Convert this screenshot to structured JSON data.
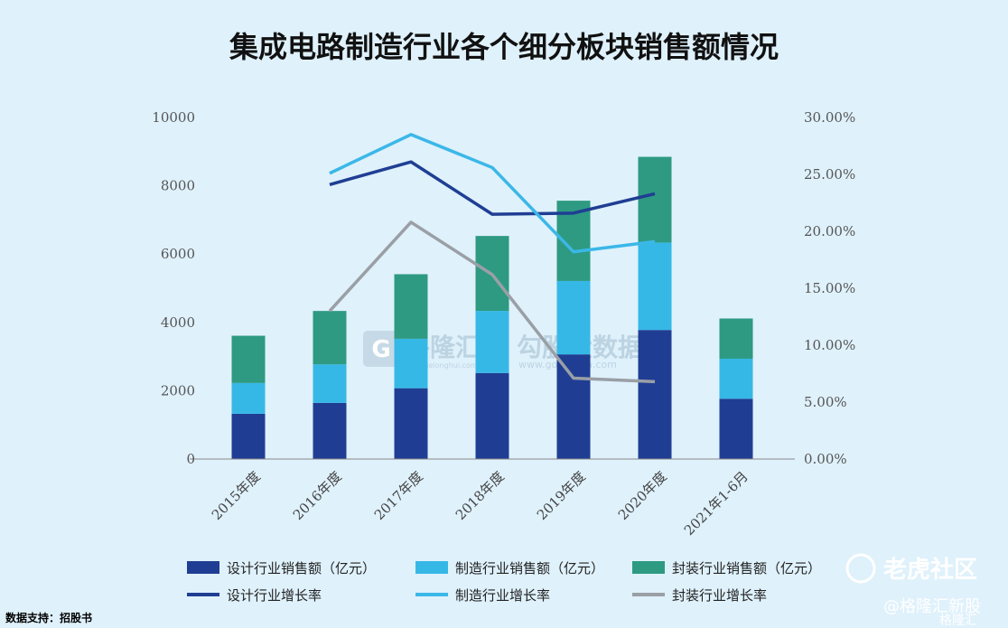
{
  "chart_data": {
    "type": "bar",
    "title": "集成电路制造行业各个细分板块销售额情况",
    "categories": [
      "2015年度",
      "2016年度",
      "2017年度",
      "2018年度",
      "2019年度",
      "2020年度",
      "2021年1-6月"
    ],
    "bar_series": [
      {
        "name": "设计行业销售额（亿元）",
        "color": "#1f3e93",
        "values": [
          1325,
          1644,
          2073,
          2519,
          3064,
          3778,
          1766
        ]
      },
      {
        "name": "制造行业销售额（亿元）",
        "color": "#36b8e6",
        "values": [
          901,
          1127,
          1448,
          1818,
          2149,
          2560,
          1171
        ]
      },
      {
        "name": "封装行业销售额（亿元）",
        "color": "#2e9a82",
        "values": [
          1384,
          1564,
          1890,
          2194,
          2350,
          2510,
          1177
        ]
      }
    ],
    "line_series": [
      {
        "name": "设计行业增长率",
        "color": "#1f3e93",
        "values": [
          null,
          24.1,
          26.1,
          21.5,
          21.6,
          23.3,
          null
        ]
      },
      {
        "name": "制造行业增长率",
        "color": "#3bb7e8",
        "values": [
          null,
          25.1,
          28.5,
          25.6,
          18.2,
          19.1,
          null
        ]
      },
      {
        "name": "封装行业增长率",
        "color": "#9a9fa6",
        "values": [
          null,
          13.0,
          20.8,
          16.2,
          7.1,
          6.8,
          null
        ]
      }
    ],
    "y_left": {
      "min": 0,
      "max": 10000,
      "ticks": [
        0,
        2000,
        4000,
        6000,
        8000,
        10000
      ]
    },
    "y_right": {
      "min": 0,
      "max": 30,
      "ticks": [
        "0.00%",
        "5.00%",
        "10.00%",
        "15.00%",
        "20.00%",
        "25.00%",
        "30.00%"
      ]
    },
    "legend_position": "bottom"
  },
  "source_note": "数据支持：招股书",
  "watermarks": {
    "center_brand": "格隆汇",
    "center_site": "www.gelonghui.com",
    "center_slogan": "勾股大数据",
    "center_site2": "www.gogudata.com",
    "corner_logo": "老虎社区",
    "corner_handle": "@格隆汇新股",
    "corner_extra": "格隆汇"
  }
}
